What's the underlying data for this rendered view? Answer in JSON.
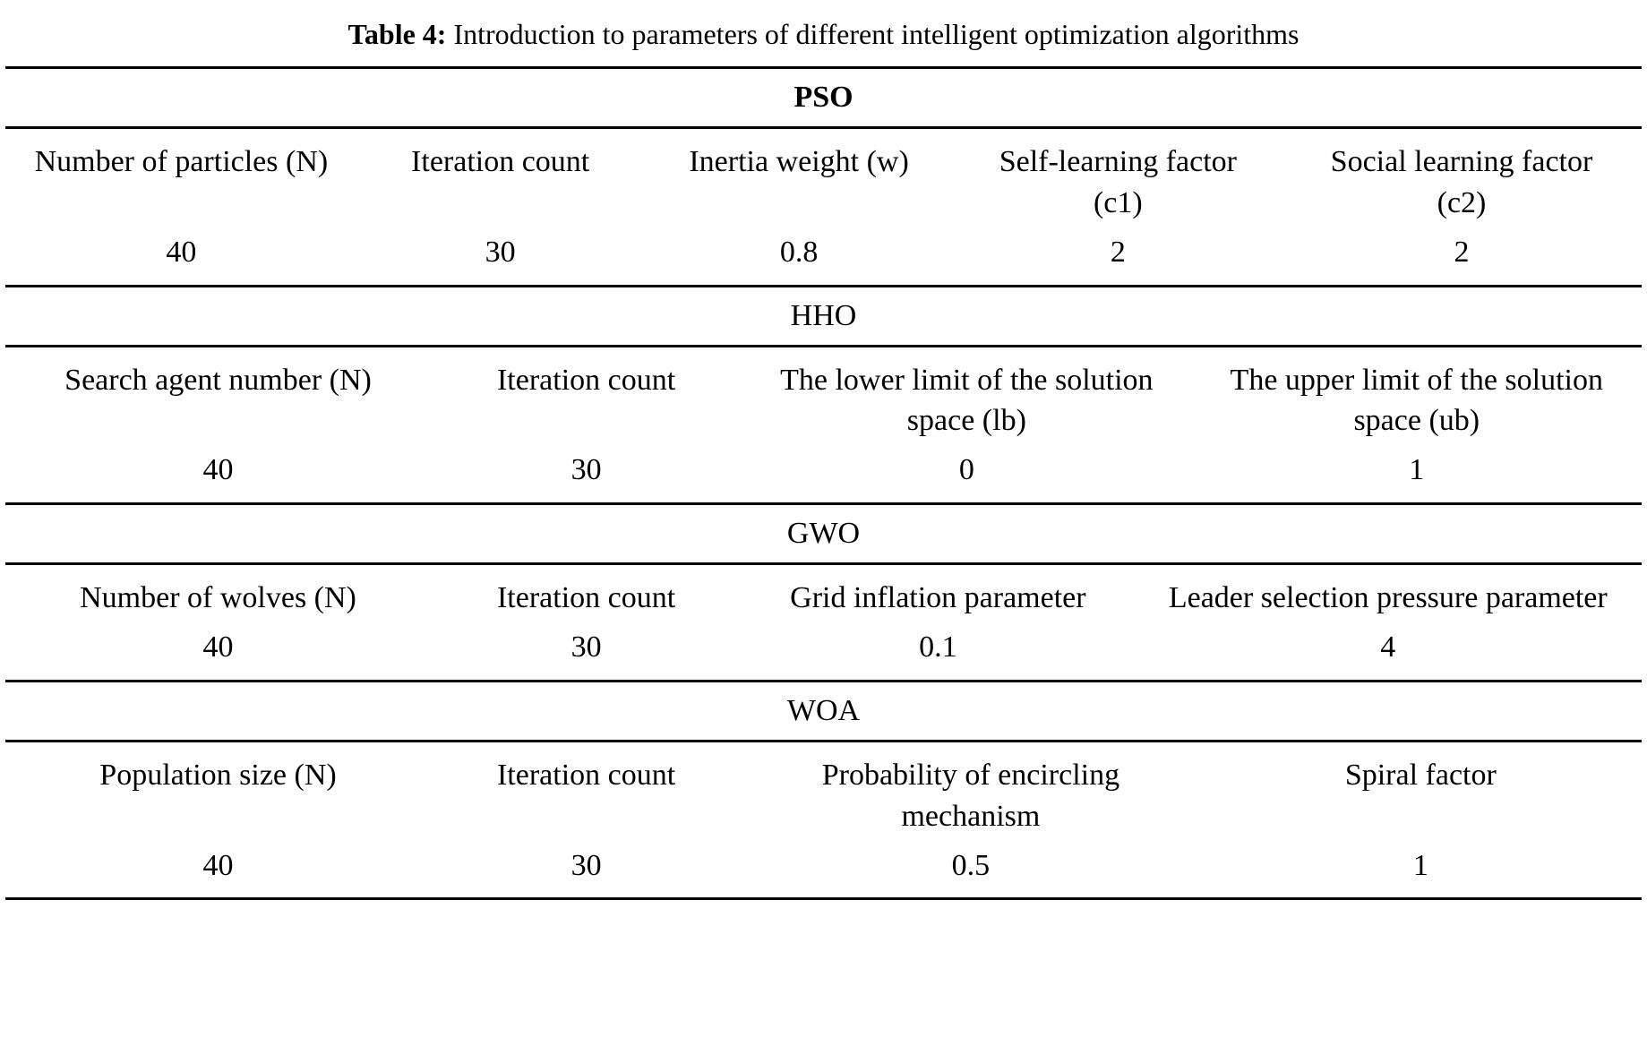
{
  "caption": {
    "label": "Table 4:",
    "text": "Introduction to parameters of different intelligent optimization algorithms"
  },
  "sections": [
    {
      "name": "PSO",
      "headers": [
        "Number of particles (N)",
        "Iteration count",
        "Inertia weight (w)",
        "Self-learning factor (c1)",
        "Social learning factor (c2)"
      ],
      "values": [
        "40",
        "30",
        "0.8",
        "2",
        "2"
      ]
    },
    {
      "name": "HHO",
      "headers": [
        "Search agent number (N)",
        "Iteration count",
        "The lower limit of the solution space (lb)",
        "The upper limit of the solution space (ub)"
      ],
      "values": [
        "40",
        "30",
        "0",
        "1"
      ]
    },
    {
      "name": "GWO",
      "headers": [
        "Number of wolves (N)",
        "Iteration count",
        "Grid inflation parameter",
        "Leader selection pressure parameter"
      ],
      "values": [
        "40",
        "30",
        "0.1",
        "4"
      ]
    },
    {
      "name": "WOA",
      "headers": [
        "Population size (N)",
        "Iteration count",
        "Probability of encircling mechanism",
        "Spiral factor"
      ],
      "values": [
        "40",
        "30",
        "0.5",
        "1"
      ]
    }
  ]
}
